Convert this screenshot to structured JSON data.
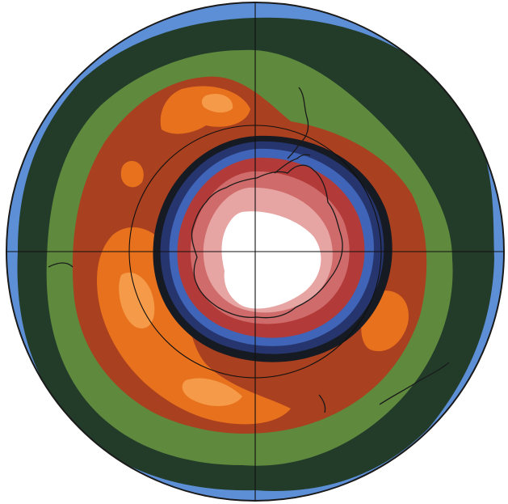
{
  "map": {
    "projection": "south-polar-stereographic",
    "style": "filled-contour",
    "gridlines": {
      "meridians": true,
      "polar_circle": true
    },
    "colors": {
      "background": "#ffffff",
      "outline": "#1a1a1a",
      "ocean_blue": "#5d8fd6",
      "dark_green": "#233c2a",
      "green": "#5f8a3e",
      "brown_red": "#a9401f",
      "orange": "#e8711d",
      "light_orange": "#f59a48",
      "ring_black": "#161a22",
      "ring_navy": "#27356e",
      "ring_blue": "#3f64b8",
      "red": "#b23a38",
      "rose": "#cf6b6a",
      "pink": "#e6a5a3",
      "white": "#ffffff"
    }
  }
}
